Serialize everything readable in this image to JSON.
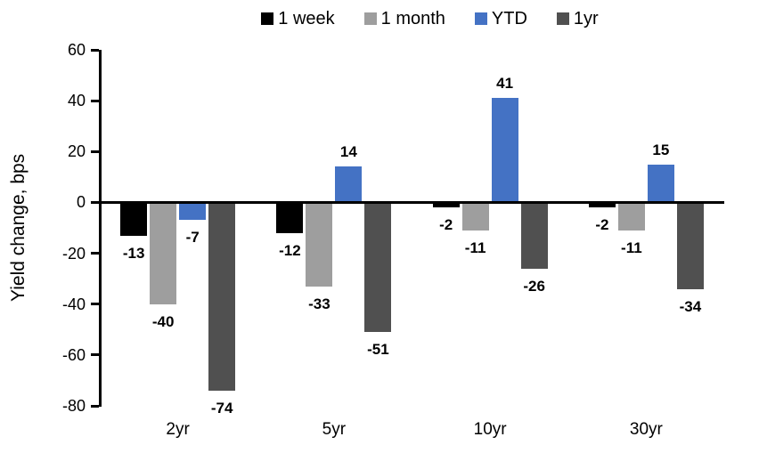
{
  "chart_data": {
    "type": "bar",
    "title": "",
    "ylabel": "Yield change, bps",
    "xlabel": "",
    "categories": [
      "2yr",
      "5yr",
      "10yr",
      "30yr"
    ],
    "series": [
      {
        "name": "1 week",
        "color": "#000000",
        "values": [
          -13,
          -12,
          -2,
          -2
        ]
      },
      {
        "name": "1 month",
        "color": "#9E9E9E",
        "values": [
          -40,
          -33,
          -11,
          -11
        ]
      },
      {
        "name": "YTD",
        "color": "#4472C4",
        "values": [
          -7,
          14,
          41,
          15
        ]
      },
      {
        "name": "1yr",
        "color": "#505050",
        "values": [
          -74,
          -51,
          -26,
          -34
        ]
      }
    ],
    "ylim": [
      -80,
      60
    ],
    "yticks": [
      60,
      40,
      20,
      0,
      -20,
      -40,
      -60,
      -80
    ],
    "grid": false,
    "legend_position": "top",
    "data_labels": true
  }
}
